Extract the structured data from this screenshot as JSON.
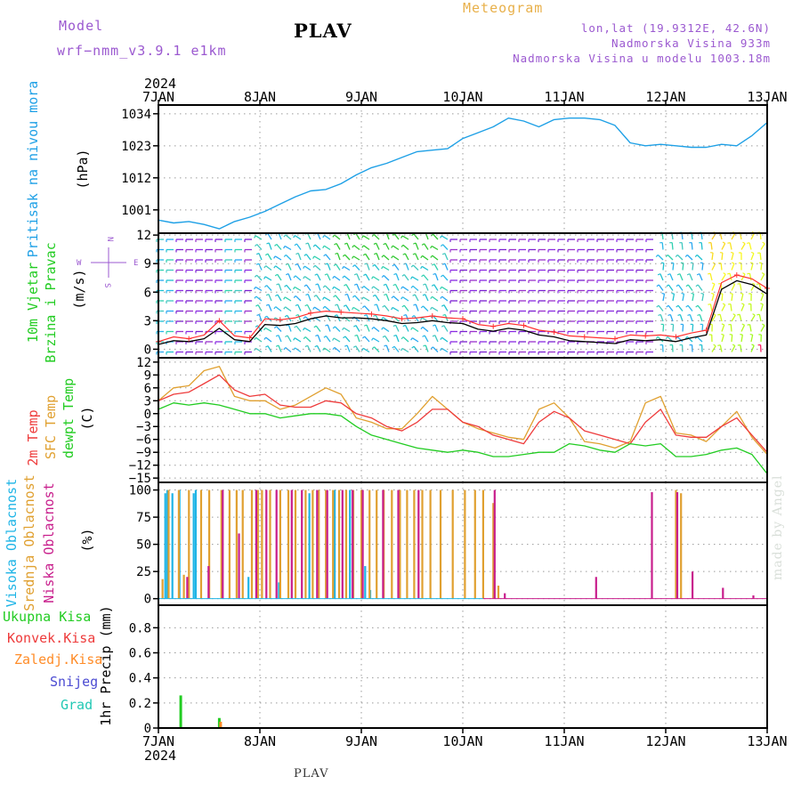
{
  "header": {
    "station": "PLAV",
    "product": "Meteogram",
    "model_label": "Model",
    "model_name": "wrf−nmm_v3.9.1 e1km",
    "location": "lon,lat (19.9312E, 42.6N)",
    "elevation": "Nadmorska Visina 933m",
    "model_elevation": "Nadmorska Visina u modelu 1003.18m"
  },
  "footer": {
    "station": "PLAV",
    "credit": "made by Angel"
  },
  "time_axis": {
    "year": "2024",
    "labels": [
      "7JAN",
      "8JAN",
      "9JAN",
      "10JAN",
      "11JAN",
      "12JAN",
      "13JAN"
    ]
  },
  "wind_compass": {
    "north": "N",
    "south": "S",
    "east": "E",
    "west": "W",
    "left_arrow": "<—",
    "right_arrow": "—>"
  },
  "colors": {
    "pressure": "#1ea0e6",
    "wind_speed": "#000000",
    "gust": "#ff3030",
    "temp_2m": "#ee3b3b",
    "temp_sfc": "#e0a030",
    "dewpoint": "#22cc22",
    "cloud_high": "#1eb4e6",
    "cloud_mid": "#e0a030",
    "cloud_low": "#c81e8c",
    "precip_total": "#22cc22",
    "precip_conv": "#ee3b3b",
    "precip_grid": "#ff8c28",
    "snow": "#4b4bd2",
    "hail": "#22c8b4",
    "label_purple": "#9b59d0"
  },
  "chart_data": [
    {
      "type": "line",
      "panel": "pressure",
      "ylabel": [
        "Pritisak na nivou mora",
        "(hPa)"
      ],
      "yticks": [
        1001,
        1012,
        1023,
        1034
      ],
      "ylim": [
        993,
        1037
      ],
      "x": [
        0,
        0.15,
        0.3,
        0.45,
        0.6,
        0.75,
        0.9,
        1.05,
        1.2,
        1.35,
        1.5,
        1.65,
        1.8,
        1.95,
        2.1,
        2.25,
        2.4,
        2.55,
        2.7,
        2.85,
        3.0,
        3.15,
        3.3,
        3.45,
        3.6,
        3.75,
        3.9,
        4.05,
        4.2,
        4.35,
        4.5,
        4.65,
        4.8,
        4.95,
        5.1,
        5.25,
        5.4,
        5.55,
        5.7,
        5.85,
        6.0
      ],
      "series": [
        {
          "values": [
            997.5,
            996.5,
            997,
            996,
            994.5,
            997,
            998.5,
            1000.5,
            1003,
            1005.5,
            1007.5,
            1008,
            1010,
            1013,
            1015.5,
            1017,
            1019,
            1021,
            1021.5,
            1022,
            1025.5,
            1027.5,
            1029.5,
            1032.5,
            1031.5,
            1029.5,
            1032,
            1032.5,
            1032.5,
            1032,
            1030,
            1024,
            1023,
            1023.5,
            1023,
            1022.5,
            1022.5,
            1023.5,
            1023,
            1026.5,
            1031
          ]
        }
      ]
    },
    {
      "type": "line",
      "panel": "wind",
      "ylabel": [
        "10m Vjetar",
        "Brzina i Pravac",
        "(m/s)"
      ],
      "yticks": [
        0,
        3,
        6,
        9,
        12
      ],
      "ylim": [
        -0.9,
        12.2
      ],
      "x": [
        0,
        0.15,
        0.3,
        0.45,
        0.6,
        0.75,
        0.9,
        1.05,
        1.2,
        1.35,
        1.5,
        1.65,
        1.8,
        1.95,
        2.1,
        2.25,
        2.4,
        2.55,
        2.7,
        2.85,
        3.0,
        3.15,
        3.3,
        3.45,
        3.6,
        3.75,
        3.9,
        4.05,
        4.2,
        4.35,
        4.5,
        4.65,
        4.8,
        4.95,
        5.1,
        5.25,
        5.4,
        5.55,
        5.7,
        5.85,
        6.0
      ],
      "series": [
        {
          "values": [
            0.5,
            0.9,
            0.8,
            1.1,
            2.2,
            1.0,
            0.8,
            2.6,
            2.5,
            2.7,
            3.2,
            3.5,
            3.3,
            3.3,
            3.2,
            3.0,
            2.7,
            2.8,
            3.0,
            2.8,
            2.7,
            2.1,
            1.9,
            2.2,
            2.0,
            1.5,
            1.3,
            0.9,
            0.8,
            0.7,
            0.6,
            1.0,
            0.9,
            1.0,
            0.8,
            1.2,
            1.5,
            6.3,
            7.2,
            6.8,
            5.8
          ]
        },
        {
          "values": [
            0.8,
            1.3,
            1.1,
            1.5,
            3.0,
            1.4,
            1.2,
            3.2,
            3.1,
            3.3,
            3.8,
            4.0,
            3.9,
            3.8,
            3.7,
            3.5,
            3.2,
            3.3,
            3.5,
            3.3,
            3.2,
            2.6,
            2.4,
            2.7,
            2.5,
            2.0,
            1.8,
            1.4,
            1.3,
            1.2,
            1.1,
            1.5,
            1.4,
            1.5,
            1.3,
            1.7,
            2.0,
            7.0,
            7.8,
            7.4,
            6.4
          ]
        }
      ]
    },
    {
      "type": "line",
      "panel": "temperature",
      "ylabel": [
        "2m Temp",
        "SFC Temp",
        "dewpt Temp",
        "(C)"
      ],
      "yticks": [
        -15,
        -12,
        -9,
        -6,
        -3,
        0,
        3,
        6,
        9,
        12
      ],
      "ylim": [
        -16,
        13
      ],
      "x": [
        0,
        0.15,
        0.3,
        0.45,
        0.6,
        0.75,
        0.9,
        1.05,
        1.2,
        1.35,
        1.5,
        1.65,
        1.8,
        1.95,
        2.1,
        2.25,
        2.4,
        2.55,
        2.7,
        2.85,
        3.0,
        3.15,
        3.3,
        3.45,
        3.6,
        3.75,
        3.9,
        4.05,
        4.2,
        4.35,
        4.5,
        4.65,
        4.8,
        4.95,
        5.1,
        5.25,
        5.4,
        5.55,
        5.7,
        5.85,
        6.0
      ],
      "series": [
        {
          "values": [
            3,
            4.5,
            5,
            7,
            9,
            5.5,
            4,
            4.5,
            2,
            1.5,
            1.5,
            3,
            2.5,
            0,
            -1,
            -3,
            -4,
            -2,
            1,
            1,
            -2,
            -3,
            -5,
            -6,
            -7,
            -2,
            0.5,
            -1,
            -4,
            -5,
            -6,
            -7,
            -2,
            1,
            -5,
            -5.5,
            -5.5,
            -3,
            -1,
            -5,
            -9
          ]
        },
        {
          "values": [
            3,
            6,
            6.5,
            10,
            11,
            4,
            3,
            3,
            1,
            2,
            4,
            6,
            4.5,
            -1,
            -2,
            -3.5,
            -3.5,
            0,
            4,
            1,
            -2,
            -3.5,
            -4.5,
            -5.5,
            -6,
            1,
            2.5,
            -1,
            -6.5,
            -7,
            -8,
            -6.5,
            2.5,
            4,
            -4.5,
            -5,
            -6.5,
            -3,
            0.5,
            -5.5,
            -9.5
          ]
        },
        {
          "values": [
            1,
            2.5,
            2,
            2.5,
            2,
            1,
            0,
            0,
            -1,
            -0.5,
            0,
            0,
            -0.5,
            -3,
            -5,
            -6,
            -7,
            -8,
            -8.5,
            -9,
            -8.5,
            -9,
            -10,
            -10,
            -9.5,
            -9,
            -9,
            -7,
            -7.5,
            -8.5,
            -9,
            -7,
            -7.5,
            -7,
            -10,
            -10,
            -9.5,
            -8.5,
            -8,
            -9.5,
            -14
          ]
        }
      ]
    },
    {
      "type": "bar",
      "panel": "clouds",
      "ylabel": [
        "Visoka Oblacnost",
        "Srednja Oblacnost",
        "Niska Oblacnost",
        "(%)"
      ],
      "yticks": [
        0,
        25,
        50,
        75,
        100
      ],
      "ylim": [
        -6,
        107
      ],
      "series": [
        {
          "x": [
            0.08,
            0.1,
            0.15,
            0.22,
            0.36,
            0.38,
            0.9,
            1.2,
            1.5,
            1.75,
            1.9,
            2.05,
            2.1
          ],
          "values": [
            97,
            100,
            97,
            100,
            97,
            100,
            20,
            15,
            97,
            100,
            100,
            30,
            8
          ]
        },
        {
          "x": [
            0.04,
            0.1,
            0.2,
            0.25,
            0.3,
            0.42,
            0.5,
            0.62,
            0.7,
            0.77,
            0.83,
            0.92,
            0.98,
            1.02,
            1.1,
            1.2,
            1.28,
            1.35,
            1.45,
            1.52,
            1.58,
            1.65,
            1.72,
            1.78,
            1.85,
            1.92,
            2.0,
            2.08,
            2.15,
            2.22,
            2.3,
            2.38,
            2.45,
            2.52,
            2.6,
            2.68,
            2.78,
            2.9,
            3.02,
            3.12,
            3.2,
            3.3,
            3.35,
            5.1,
            5.15
          ],
          "values": [
            18,
            100,
            100,
            22,
            100,
            100,
            100,
            100,
            100,
            100,
            100,
            100,
            100,
            100,
            100,
            100,
            100,
            100,
            100,
            100,
            100,
            100,
            100,
            100,
            100,
            100,
            100,
            100,
            100,
            100,
            100,
            100,
            100,
            100,
            100,
            100,
            100,
            100,
            100,
            100,
            100,
            88,
            12,
            100,
            97
          ]
        },
        {
          "x": [
            0.27,
            0.48,
            0.62,
            0.78,
            0.95,
            1.05,
            1.15,
            1.3,
            1.4,
            1.55,
            1.65,
            1.8,
            1.9,
            2.0,
            2.2,
            2.35,
            2.55,
            3.3,
            3.4,
            4.3,
            4.85,
            5.1,
            5.25,
            5.55,
            5.85
          ],
          "values": [
            20,
            30,
            100,
            60,
            100,
            100,
            100,
            100,
            100,
            100,
            100,
            100,
            100,
            100,
            100,
            100,
            100,
            100,
            5,
            20,
            98,
            98,
            25,
            10,
            3
          ]
        }
      ]
    },
    {
      "type": "bar",
      "panel": "precip",
      "ylabel": [
        "1hr Precip (mm)"
      ],
      "legend": [
        "Ukupna Kisa",
        "Konvek.Kisa",
        "Zaledj.Kisa",
        "Snijeg",
        "Grad"
      ],
      "yticks": [
        0,
        0.2,
        0.4,
        0.6,
        0.8
      ],
      "ylim": [
        0,
        0.98
      ],
      "series": [
        {
          "x": [
            0.22,
            0.6
          ],
          "values": [
            0.26,
            0.08
          ]
        },
        {
          "x": [
            0.6
          ],
          "values": [
            0.05
          ]
        }
      ]
    }
  ]
}
